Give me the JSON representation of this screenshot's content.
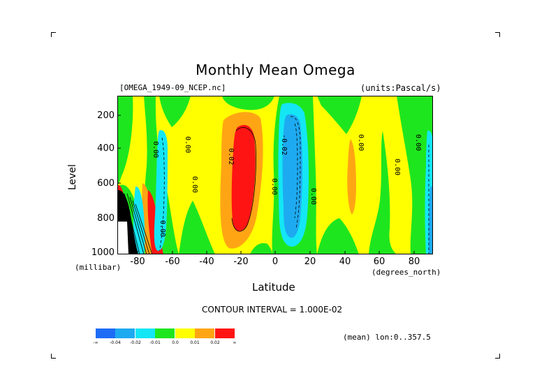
{
  "title": "Monthly Mean Omega",
  "file_label": "[OMEGA_1949-09_NCEP.nc]",
  "units_label": "(units:Pascal/s)",
  "ylabel": "Level",
  "yunit": "(millibar)",
  "xlabel": "Latitude",
  "xunit": "(degrees_north)",
  "contour_interval": "CONTOUR INTERVAL = 1.000E-02",
  "mean_label": "(mean) lon:0..357.5",
  "colorbar": {
    "labels": [
      "-∞",
      "-0.04",
      "-0.02",
      "-0.01",
      "0.0",
      "0.01",
      "0.02",
      "∞"
    ],
    "colors": [
      "#1e6cf5",
      "#1eaaf0",
      "#14e6f5",
      "#1ee61e",
      "#ffff00",
      "#ffa514",
      "#ff1414"
    ]
  },
  "contour_labels": [
    "0.00",
    "0.00",
    "0.00",
    "0.02",
    "-0.02",
    "0.00",
    "0.00",
    "0.00",
    "0.00",
    "0.00",
    "0.00"
  ],
  "chart_data": {
    "type": "heatmap",
    "title": "Monthly Mean Omega",
    "xlabel": "Latitude",
    "ylabel": "Level",
    "x_ticks": [
      -80,
      -60,
      -40,
      -20,
      0,
      20,
      40,
      60,
      80
    ],
    "y_ticks": [
      200,
      400,
      600,
      800,
      1000
    ],
    "xlim": [
      -90,
      90
    ],
    "ylim": [
      1000,
      100
    ],
    "y_reversed": true,
    "levels": [
      -0.04,
      -0.02,
      -0.01,
      0.0,
      0.01,
      0.02
    ],
    "features": [
      {
        "lat": -25,
        "level_range": [
          250,
          850
        ],
        "value": 0.02,
        "sign": "positive"
      },
      {
        "lat": 12,
        "level_range": [
          200,
          900
        ],
        "value": -0.03,
        "sign": "negative"
      },
      {
        "lat": -65,
        "level_range": [
          400,
          1000
        ],
        "value": -0.02,
        "sign": "negative"
      },
      {
        "lat": -72,
        "level_range": [
          650,
          1000
        ],
        "value": 0.02,
        "sign": "positive"
      },
      {
        "lat": 45,
        "level_range": [
          450,
          800
        ],
        "value": 0.01,
        "sign": "positive"
      },
      {
        "lat": 89,
        "level_range": [
          500,
          950
        ],
        "value": -0.02,
        "sign": "negative"
      }
    ]
  }
}
